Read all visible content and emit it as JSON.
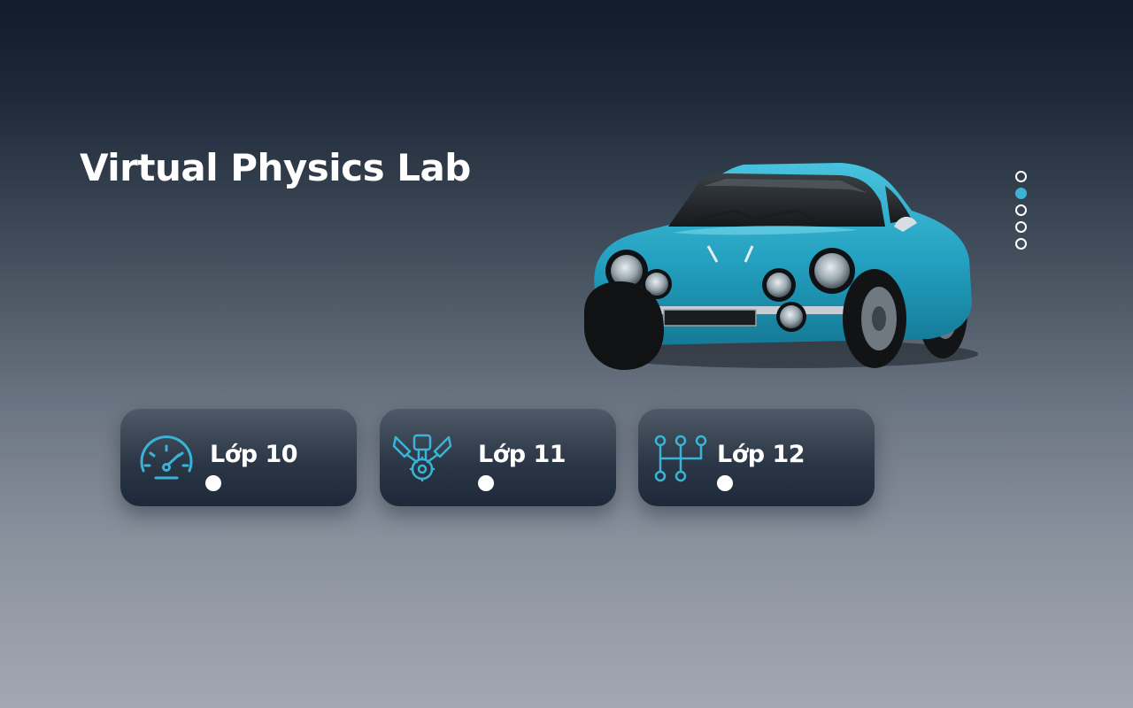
{
  "header": {
    "title": "Virtual Physics Lab"
  },
  "hero": {
    "image": "blue-vintage-sports-car",
    "car_color": "#2aa8c6"
  },
  "carousel": {
    "slides": 5,
    "active_index": 1,
    "active_color": "#3ab4d6"
  },
  "grades": [
    {
      "label": "Lớp 10",
      "icon": "speedometer-icon"
    },
    {
      "label": "Lớp 11",
      "icon": "engine-piston-icon"
    },
    {
      "label": "Lớp 12",
      "icon": "gear-shift-icon"
    }
  ],
  "colors": {
    "accent": "#3ab4d6",
    "text": "#ffffff",
    "card_top": "#4f5a68",
    "card_bottom": "#1d2938"
  }
}
